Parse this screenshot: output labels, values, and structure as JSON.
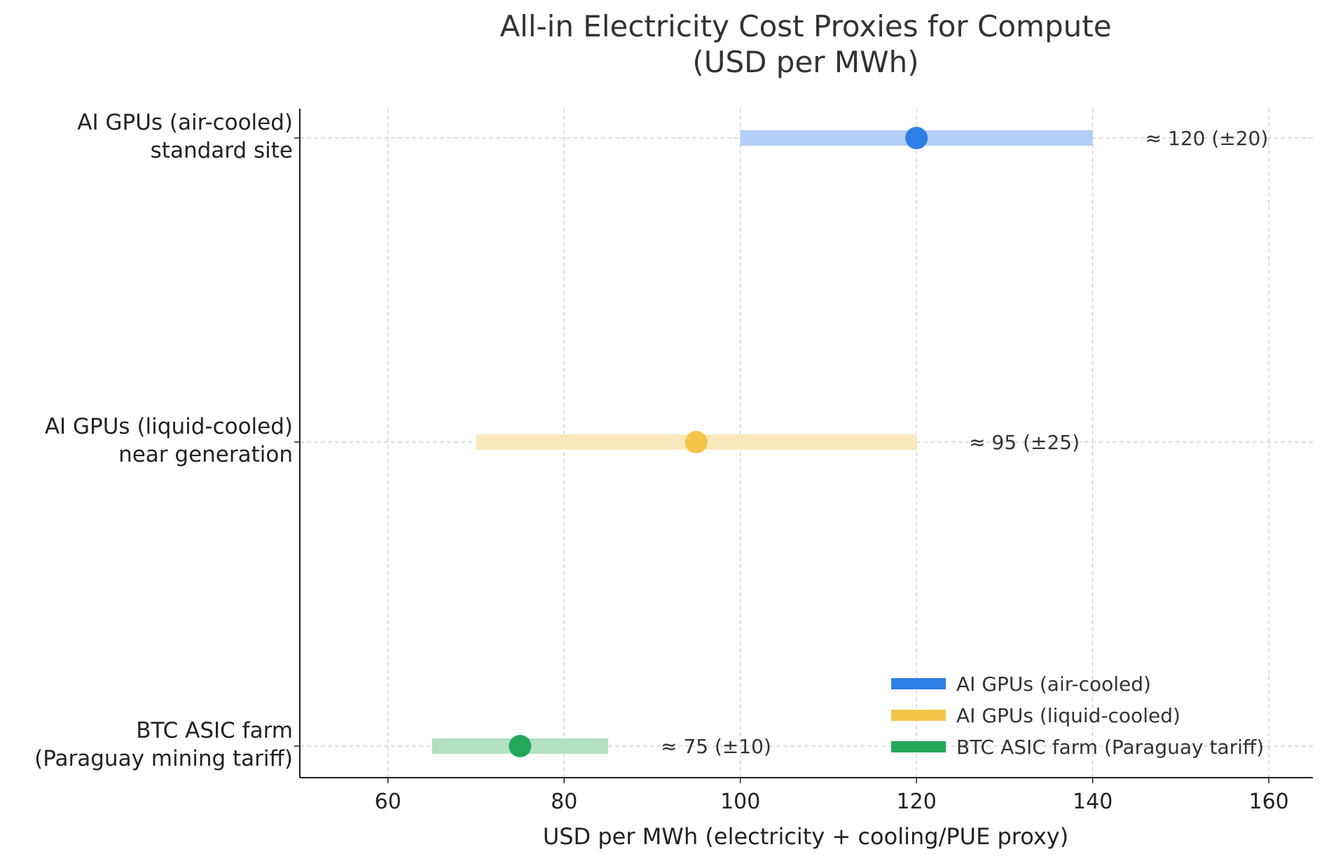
{
  "chart_data": {
    "type": "range",
    "title": [
      "All-in Electricity Cost Proxies for Compute",
      "(USD per MWh)"
    ],
    "xlabel": "USD per MWh (electricity + cooling/PUE proxy)",
    "ylabel": "",
    "xlim": [
      50,
      165
    ],
    "xticks": [
      60,
      80,
      100,
      120,
      140,
      160
    ],
    "grid": true,
    "legend_position": "bottom-right",
    "series": [
      {
        "category_lines": [
          "AI GPUs (air-cooled)",
          "standard site"
        ],
        "legend": "AI GPUs (air-cooled)",
        "center": 120,
        "low": 100,
        "high": 140,
        "label": "≈ 120 (±20)",
        "color": "#2f7fe8",
        "band_color": "#b3cff7"
      },
      {
        "category_lines": [
          "AI GPUs (liquid-cooled)",
          "near generation"
        ],
        "legend": "AI GPUs (liquid-cooled)",
        "center": 95,
        "low": 70,
        "high": 120,
        "label": "≈ 95 (±25)",
        "color": "#f3c64b",
        "band_color": "#f9e9bd"
      },
      {
        "category_lines": [
          "BTC ASIC farm",
          "(Paraguay mining tariff)"
        ],
        "legend": "BTC ASIC farm (Paraguay tariff)",
        "center": 75,
        "low": 65,
        "high": 85,
        "label": "≈ 75 (±10)",
        "color": "#22a85a",
        "band_color": "#b2e0c3"
      }
    ]
  }
}
